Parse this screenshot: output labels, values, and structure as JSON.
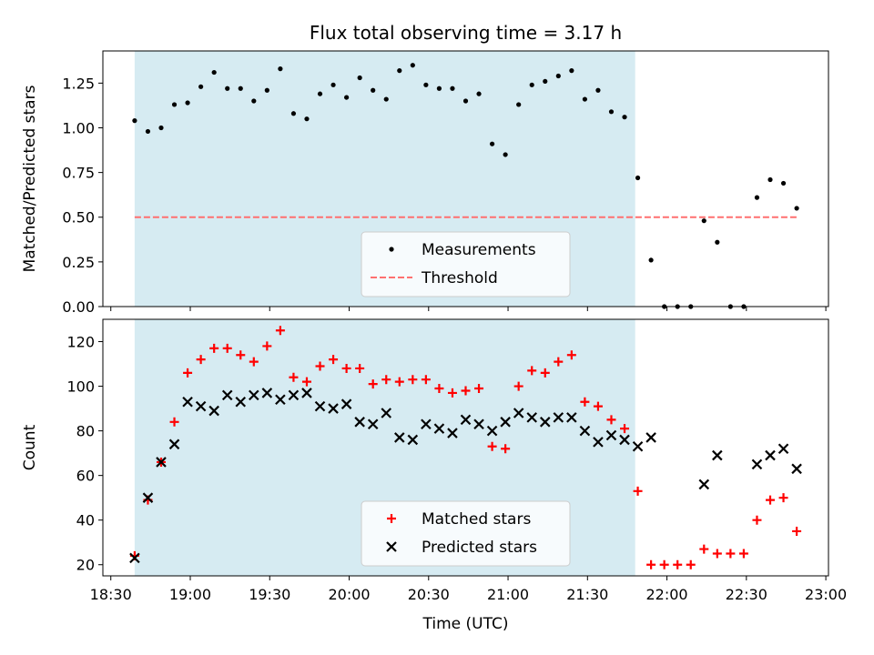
{
  "chart_data": [
    {
      "type": "scatter",
      "title": "Flux total observing time = 3.17 h",
      "xlabel": "",
      "ylabel": "Matched/Predicted stars",
      "xlim": [
        "18:27",
        "23:01"
      ],
      "ylim": [
        0,
        1.43
      ],
      "yticks": [
        0,
        0.25,
        0.5,
        0.75,
        1.0,
        1.25
      ],
      "ytick_labels": [
        "0.00",
        "0.25",
        "0.50",
        "0.75",
        "1.00",
        "1.25"
      ],
      "shaded_interval": {
        "start": "18:39",
        "end": "21:48"
      },
      "legend": {
        "position": "lower-center",
        "entries": [
          "Measurements",
          "Threshold"
        ]
      },
      "series": [
        {
          "name": "Measurements",
          "marker": "dot",
          "color": "#000000",
          "x": [
            "18:39",
            "18:44",
            "18:49",
            "18:54",
            "18:59",
            "19:04",
            "19:09",
            "19:14",
            "19:19",
            "19:24",
            "19:29",
            "19:34",
            "19:39",
            "19:44",
            "19:49",
            "19:54",
            "19:59",
            "20:04",
            "20:09",
            "20:14",
            "20:19",
            "20:24",
            "20:29",
            "20:34",
            "20:39",
            "20:44",
            "20:49",
            "20:54",
            "20:59",
            "21:04",
            "21:09",
            "21:14",
            "21:19",
            "21:24",
            "21:29",
            "21:34",
            "21:39",
            "21:44",
            "21:49",
            "21:54",
            "21:59",
            "22:04",
            "22:09",
            "22:14",
            "22:19",
            "22:24",
            "22:29",
            "22:34",
            "22:39",
            "22:44",
            "22:49"
          ],
          "y": [
            1.04,
            0.98,
            1.0,
            1.13,
            1.14,
            1.23,
            1.31,
            1.22,
            1.22,
            1.15,
            1.21,
            1.33,
            1.08,
            1.05,
            1.19,
            1.24,
            1.17,
            1.28,
            1.21,
            1.16,
            1.32,
            1.35,
            1.24,
            1.22,
            1.22,
            1.15,
            1.19,
            0.91,
            0.85,
            1.13,
            1.24,
            1.26,
            1.29,
            1.32,
            1.16,
            1.21,
            1.09,
            1.06,
            0.72,
            0.26,
            0.0,
            0.0,
            0.0,
            0.48,
            0.36,
            0.0,
            0.0,
            0.61,
            0.71,
            0.69,
            0.55
          ]
        },
        {
          "name": "Threshold",
          "style": "dashed",
          "color": "#ff7070",
          "x": [
            "18:39",
            "22:49"
          ],
          "y": [
            0.5,
            0.5
          ]
        }
      ]
    },
    {
      "type": "scatter",
      "title": "",
      "xlabel": "Time (UTC)",
      "ylabel": "Count",
      "xlim": [
        "18:27",
        "23:01"
      ],
      "ylim": [
        15,
        130
      ],
      "yticks": [
        20,
        40,
        60,
        80,
        100,
        120
      ],
      "ytick_labels": [
        "20",
        "40",
        "60",
        "80",
        "100",
        "120"
      ],
      "xticks": [
        "18:30",
        "19:00",
        "19:30",
        "20:00",
        "20:30",
        "21:00",
        "21:30",
        "22:00",
        "22:30",
        "23:00"
      ],
      "shaded_interval": {
        "start": "18:39",
        "end": "21:48"
      },
      "legend": {
        "position": "lower-center",
        "entries": [
          "Matched stars",
          "Predicted stars"
        ]
      },
      "series": [
        {
          "name": "Matched stars",
          "marker": "plus",
          "color": "#ff0000",
          "x": [
            "18:39",
            "18:44",
            "18:49",
            "18:54",
            "18:59",
            "19:04",
            "19:09",
            "19:14",
            "19:19",
            "19:24",
            "19:29",
            "19:34",
            "19:39",
            "19:44",
            "19:49",
            "19:54",
            "19:59",
            "20:04",
            "20:09",
            "20:14",
            "20:19",
            "20:24",
            "20:29",
            "20:34",
            "20:39",
            "20:44",
            "20:49",
            "20:54",
            "20:59",
            "21:04",
            "21:09",
            "21:14",
            "21:19",
            "21:24",
            "21:29",
            "21:34",
            "21:39",
            "21:44",
            "21:49",
            "21:54",
            "21:59",
            "22:04",
            "22:09",
            "22:14",
            "22:19",
            "22:24",
            "22:29",
            "22:34",
            "22:39",
            "22:44",
            "22:49"
          ],
          "y": [
            24,
            49,
            66,
            84,
            106,
            112,
            117,
            117,
            114,
            111,
            118,
            125,
            104,
            102,
            109,
            112,
            108,
            108,
            101,
            103,
            102,
            103,
            103,
            99,
            97,
            98,
            99,
            73,
            72,
            100,
            107,
            106,
            111,
            114,
            93,
            91,
            85,
            81,
            53,
            20,
            20,
            20,
            20,
            27,
            25,
            25,
            25,
            40,
            49,
            50,
            35
          ]
        },
        {
          "name": "Predicted stars",
          "marker": "x",
          "color": "#000000",
          "x": [
            "18:39",
            "18:44",
            "18:49",
            "18:54",
            "18:59",
            "19:04",
            "19:09",
            "19:14",
            "19:19",
            "19:24",
            "19:29",
            "19:34",
            "19:39",
            "19:44",
            "19:49",
            "19:54",
            "19:59",
            "20:04",
            "20:09",
            "20:14",
            "20:19",
            "20:24",
            "20:29",
            "20:34",
            "20:39",
            "20:44",
            "20:49",
            "20:54",
            "20:59",
            "21:04",
            "21:09",
            "21:14",
            "21:19",
            "21:24",
            "21:29",
            "21:34",
            "21:39",
            "21:44",
            "21:49",
            "21:54",
            "22:14",
            "22:19",
            "22:34",
            "22:39",
            "22:44",
            "22:49"
          ],
          "y": [
            23,
            50,
            66,
            74,
            93,
            91,
            89,
            96,
            93,
            96,
            97,
            94,
            96,
            97,
            91,
            90,
            92,
            84,
            83,
            88,
            77,
            76,
            83,
            81,
            79,
            85,
            83,
            80,
            84,
            88,
            86,
            84,
            86,
            86,
            80,
            75,
            78,
            76,
            73,
            77,
            56,
            69,
            65,
            69,
            72,
            63
          ]
        }
      ]
    }
  ]
}
